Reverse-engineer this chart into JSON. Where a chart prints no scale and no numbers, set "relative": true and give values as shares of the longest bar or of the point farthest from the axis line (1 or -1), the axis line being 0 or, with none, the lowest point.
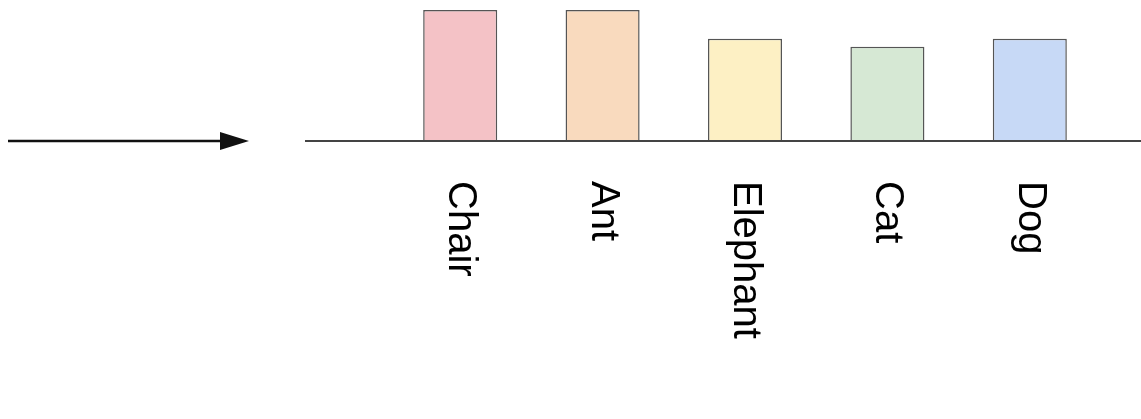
{
  "chart_data": {
    "type": "bar",
    "relative": true,
    "categories": [
      "Chair",
      "Ant",
      "Elephant",
      "Cat",
      "Dog"
    ],
    "values": [
      1,
      1,
      0.78,
      0.72,
      0.78
    ],
    "colors": [
      "#f4c2c6",
      "#f9dabe",
      "#fdf0c4",
      "#d6e8d4",
      "#c7d9f6"
    ]
  }
}
